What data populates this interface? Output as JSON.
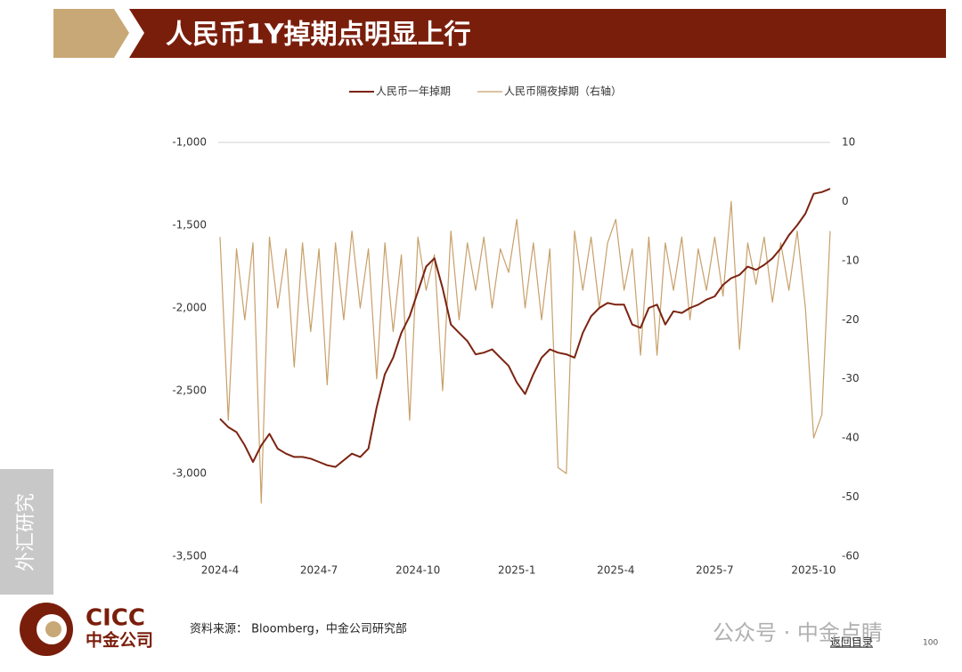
{
  "slide": {
    "side_label": "外汇研究",
    "source": "资料来源： Bloomberg，中金公司研究部",
    "watermark": "公众号 · 中金点睛",
    "back_link": "返回目录",
    "page_number": "100",
    "logo_en": "CICC",
    "logo_cn": "中金公司"
  },
  "chart_data": {
    "type": "line",
    "title": "人民币1Y掉期点明显上行",
    "categories": [
      "2024-4",
      null,
      null,
      null,
      null,
      null,
      null,
      null,
      null,
      null,
      null,
      null,
      "2024-7",
      null,
      null,
      null,
      null,
      null,
      null,
      null,
      null,
      null,
      null,
      null,
      "2024-10",
      null,
      null,
      null,
      null,
      null,
      null,
      null,
      null,
      null,
      null,
      null,
      "2025-1",
      null,
      null,
      null,
      null,
      null,
      null,
      null,
      null,
      null,
      null,
      null,
      "2025-4",
      null,
      null,
      null,
      null,
      null,
      null,
      null,
      null,
      null,
      null,
      null,
      "2025-7",
      null,
      null,
      null,
      null,
      null,
      null,
      null,
      null,
      null,
      null,
      null,
      "2025-10",
      null,
      null
    ],
    "series": [
      {
        "name": "人民币一年掉期",
        "color": "#7b2411",
        "values": [
          -2670,
          -2720,
          -2750,
          -2830,
          -2930,
          -2830,
          -2760,
          -2850,
          -2880,
          -2900,
          -2900,
          -2910,
          -2930,
          -2950,
          -2960,
          -2920,
          -2880,
          -2900,
          -2850,
          -2600,
          -2400,
          -2300,
          -2150,
          -2050,
          -1900,
          -1750,
          -1700,
          -1880,
          -2100,
          -2150,
          -2200,
          -2280,
          -2270,
          -2250,
          -2300,
          -2350,
          -2450,
          -2520,
          -2400,
          -2300,
          -2250,
          -2270,
          -2280,
          -2300,
          -2150,
          -2050,
          -2000,
          -1970,
          -1980,
          -1980,
          -2100,
          -2120,
          -2000,
          -1980,
          -2100,
          -2020,
          -2030,
          -2000,
          -1980,
          -1950,
          -1930,
          -1860,
          -1820,
          -1800,
          -1750,
          -1770,
          -1740,
          -1700,
          -1640,
          -1560,
          -1500,
          -1430,
          -1310,
          -1300,
          -1280
        ]
      },
      {
        "name": "人民币隔夜掉期（右轴）",
        "color": "#c8a06a",
        "axis": "y2",
        "values": [
          -6,
          -37,
          -8,
          -20,
          -7,
          -51,
          -6,
          -18,
          -8,
          -28,
          -7,
          -22,
          -8,
          -31,
          -7,
          -20,
          -5,
          -18,
          -8,
          -30,
          -7,
          -22,
          -9,
          -37,
          -6,
          -15,
          -9,
          -32,
          -5,
          -20,
          -7,
          -15,
          -6,
          -18,
          -8,
          -12,
          -3,
          -18,
          -7,
          -20,
          -8,
          -45,
          -46,
          -5,
          -15,
          -6,
          -18,
          -7,
          -3,
          -15,
          -8,
          -26,
          -6,
          -26,
          -7,
          -15,
          -6,
          -20,
          -8,
          -15,
          -6,
          -16,
          0,
          -25,
          -7,
          -14,
          -6,
          -17,
          -7,
          -15,
          -5,
          -18,
          -40,
          -36,
          -5
        ]
      }
    ],
    "ylim": [
      -3500,
      -1000
    ],
    "yticks": [
      {
        "value": -1000,
        "label": "-1,000"
      },
      {
        "value": -1500,
        "label": "-1,500"
      },
      {
        "value": -2000,
        "label": "-2,000"
      },
      {
        "value": -2500,
        "label": "-2,500"
      },
      {
        "value": -3000,
        "label": "-3,000"
      },
      {
        "value": -3500,
        "label": "-3,500"
      }
    ],
    "y2lim": [
      -60,
      10
    ],
    "y2ticks": [
      10,
      0,
      -10,
      -20,
      -30,
      -40,
      -50,
      -60
    ],
    "grid": false,
    "legend": "top"
  }
}
